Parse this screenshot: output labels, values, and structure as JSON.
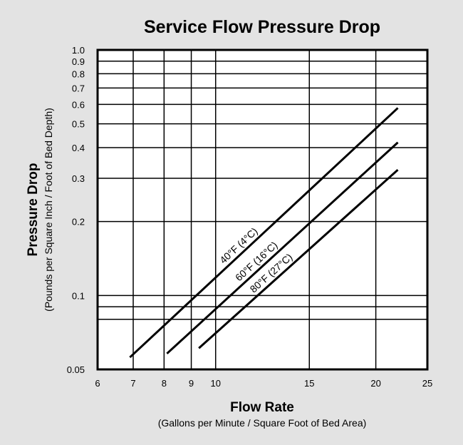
{
  "chart_data": {
    "type": "line",
    "title": "Service Flow Pressure Drop",
    "xlabel": "Flow Rate",
    "xlabel_sub": "(Gallons per Minute / Square Foot of Bed Area)",
    "ylabel": "Pressure Drop",
    "ylabel_sub": "(Pounds per Square Inch / Foot of Bed Depth)",
    "x_scale": "log",
    "y_scale": "log",
    "xlim": [
      6,
      25
    ],
    "ylim": [
      0.05,
      1.0
    ],
    "grid": true,
    "x_ticks": [
      6,
      7,
      8,
      9,
      10,
      15,
      20,
      25
    ],
    "x_tick_labels": [
      "6",
      "7",
      "8",
      "9",
      "10",
      "15",
      "20",
      "25"
    ],
    "y_ticks": [
      0.05,
      0.1,
      0.2,
      0.3,
      0.4,
      0.5,
      0.6,
      0.7,
      0.8,
      0.9,
      1.0
    ],
    "y_tick_labels": [
      "0.05",
      "0.1",
      "0.2",
      "0.3",
      "0.4",
      "0.5",
      "0.6",
      "0.7",
      "0.8",
      "0.9",
      "1.0"
    ],
    "y_grid_extra": [
      0.08,
      0.09
    ],
    "line_color": "#000000",
    "series": [
      {
        "name": "40°F (4°C)",
        "x": [
          6.9,
          22
        ],
        "y": [
          0.056,
          0.58
        ]
      },
      {
        "name": "60°F (16°C)",
        "x": [
          8.1,
          22
        ],
        "y": [
          0.058,
          0.42
        ]
      },
      {
        "name": "80°F (27°C)",
        "x": [
          9.3,
          22
        ],
        "y": [
          0.061,
          0.325
        ]
      }
    ]
  }
}
